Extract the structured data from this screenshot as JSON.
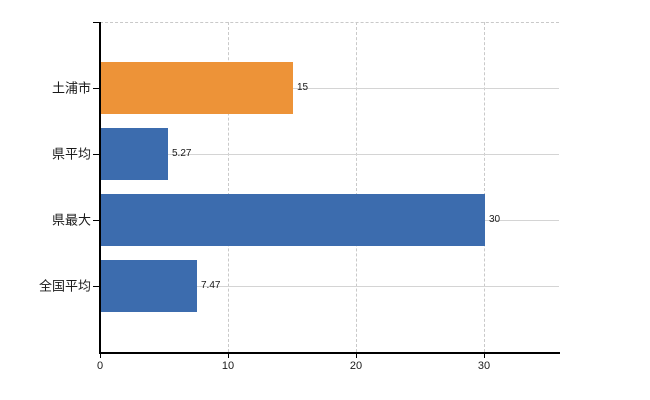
{
  "chart_data": {
    "type": "bar",
    "orientation": "horizontal",
    "title": "",
    "xlabel": "",
    "ylabel": "",
    "categories": [
      "土浦市",
      "県平均",
      "県最大",
      "全国平均"
    ],
    "values": [
      15,
      5.27,
      30,
      7.47
    ],
    "value_labels": [
      "15",
      "5.27",
      "30",
      "7.47"
    ],
    "bar_colors": [
      "#ED9338",
      "#3C6CAE",
      "#3C6CAE",
      "#3C6CAE"
    ],
    "xlim": [
      0,
      36
    ],
    "x_ticks": [
      0,
      10,
      20,
      30
    ],
    "x_tick_labels": [
      "0",
      "10",
      "20",
      "30"
    ],
    "legend": "none",
    "grid": "dashed-vertical-at-ticks, solid-horizontal-at-category-centers, dashed-top-border",
    "highlight_category": "土浦市",
    "colors": {
      "highlight_bar": "#ED9338",
      "default_bar": "#3C6CAE",
      "axis": "#000000",
      "grid_dashed": "#C9C9C9",
      "grid_solid": "#D4D4D4",
      "text": "#1A1A1A",
      "background": "#FFFFFF"
    }
  }
}
